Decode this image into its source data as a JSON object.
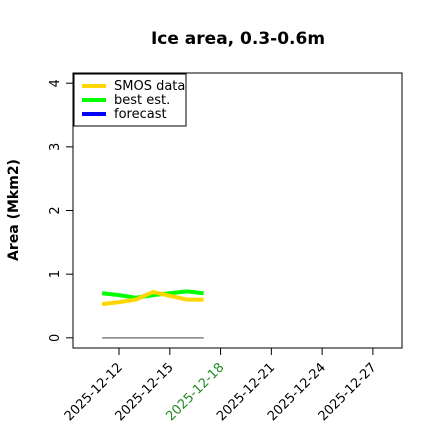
{
  "chart_data": {
    "type": "line",
    "title": "Ice area, 0.3-0.6m",
    "y_label": "Area (Mkm2)",
    "x": [
      "2025-12-11",
      "2025-12-12",
      "2025-12-13",
      "2025-12-14",
      "2025-12-15",
      "2025-12-16",
      "2025-12-17"
    ],
    "series": [
      {
        "name": "SMOS data",
        "color": "#ffd700",
        "values": [
          0.53,
          0.56,
          0.6,
          0.72,
          0.66,
          0.6,
          0.6
        ]
      },
      {
        "name": "best est.",
        "color": "#00ff00",
        "values": [
          0.7,
          0.67,
          0.63,
          0.67,
          0.7,
          0.73,
          0.7
        ]
      },
      {
        "name": "forecast",
        "color": "#0000ff",
        "values": [
          null,
          null,
          null,
          null,
          null,
          null,
          null
        ]
      },
      {
        "color": "#808080",
        "values": [
          0,
          0,
          0,
          0,
          0,
          0,
          0
        ]
      }
    ],
    "xlim": [
      "2025-12-10",
      "2025-12-28"
    ],
    "xticks": [
      "2025-12-12",
      "2025-12-15",
      "2025-12-18",
      "2025-12-21",
      "2025-12-24",
      "2025-12-27"
    ],
    "xtick_colors": [
      "#000000",
      "#000000",
      "#228b22",
      "#000000",
      "#000000",
      "#000000"
    ],
    "ylim": [
      -0.16,
      4.16
    ],
    "yticks": [
      0,
      1,
      2,
      3,
      4
    ],
    "legend": "top-left"
  }
}
